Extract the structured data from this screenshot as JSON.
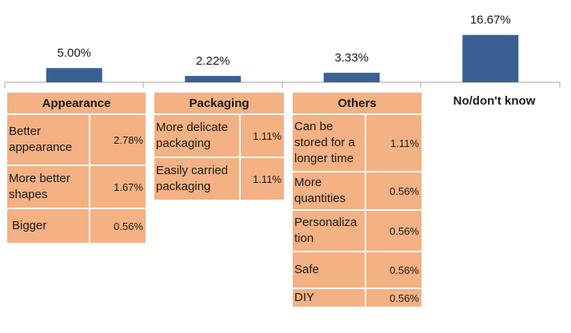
{
  "chart_data": {
    "type": "bar",
    "categories": [
      "Appearance",
      "Packaging",
      "Others",
      "No/don't know"
    ],
    "values": [
      5.0,
      2.22,
      3.33,
      16.67
    ],
    "value_labels": [
      "5.00%",
      "2.22%",
      "3.33%",
      "16.67%"
    ],
    "bar_color": "#3a6093",
    "ylim": [
      0,
      18
    ]
  },
  "tables": {
    "appearance": {
      "header": "Appearance",
      "rows": [
        {
          "label": "Better appearance",
          "value": "2.78%"
        },
        {
          "label": "More better shapes",
          "value": "1.67%"
        },
        {
          "label": "Bigger",
          "value": "0.56%"
        }
      ]
    },
    "packaging": {
      "header": "Packaging",
      "rows": [
        {
          "label": "More delicate packaging",
          "value": "1.11%"
        },
        {
          "label": "Easily carried packaging",
          "value": "1.11%"
        }
      ]
    },
    "others": {
      "header": "Others",
      "rows": [
        {
          "label": "Can be stored for a longer time",
          "value": "1.11%"
        },
        {
          "label": "More quantities",
          "value": "0.56%"
        },
        {
          "label": "Personaliza tion",
          "value": "0.56%"
        },
        {
          "label": "Safe",
          "value": "0.56%"
        },
        {
          "label": "DIY",
          "value": "0.56%"
        }
      ]
    },
    "no_dont_know_label": "No/don't know"
  },
  "colors": {
    "cell_fill": "#f4b183",
    "axis": "#a6a6a6"
  }
}
